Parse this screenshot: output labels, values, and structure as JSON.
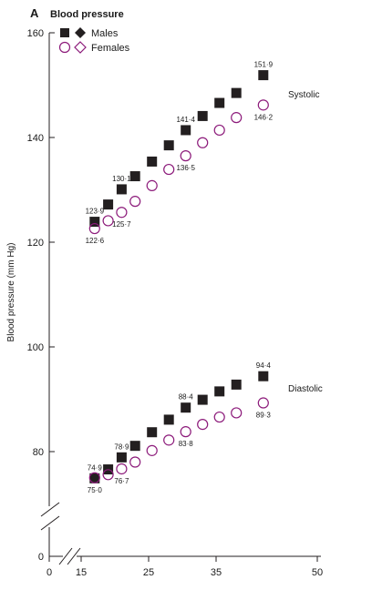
{
  "chart_data": {
    "type": "scatter",
    "panel_label": "A",
    "title": "Blood pressure",
    "ylabel": "Blood pressure (mm Hg)",
    "xlabel": "",
    "ylim": [
      0,
      160
    ],
    "xlim": [
      0,
      50
    ],
    "broken_axes": true,
    "y_ticks": [
      "0",
      "80",
      "100",
      "120",
      "140",
      "160"
    ],
    "x_ticks": [
      "0",
      "15",
      "25",
      "35",
      "50"
    ],
    "legend": {
      "position": "top-left",
      "entries": [
        {
          "name": "Males",
          "marker": "filled square / filled diamond"
        },
        {
          "name": "Females",
          "marker": "open circle / open diamond"
        }
      ]
    },
    "group_labels": {
      "systolic": "Systolic",
      "diastolic": "Diastolic"
    },
    "colors": {
      "males": "#231f20",
      "females": "#8c1a7a",
      "axis": "#231f20"
    },
    "series": [
      {
        "name": "Males",
        "group": "Systolic",
        "x": [
          17,
          19,
          21,
          23,
          25.5,
          28,
          30.5,
          33,
          35.5,
          38,
          42
        ],
        "y": [
          123.9,
          127.2,
          130.1,
          132.6,
          135.4,
          138.5,
          141.4,
          144.1,
          146.6,
          148.5,
          151.9
        ]
      },
      {
        "name": "Females",
        "group": "Systolic",
        "x": [
          17,
          19,
          21,
          23,
          25.5,
          28,
          30.5,
          33,
          35.5,
          38,
          42
        ],
        "y": [
          122.6,
          124.1,
          125.7,
          127.8,
          130.8,
          133.9,
          136.5,
          139.0,
          141.4,
          143.8,
          146.2
        ]
      },
      {
        "name": "Males",
        "group": "Diastolic",
        "x": [
          17,
          19,
          21,
          23,
          25.5,
          28,
          30.5,
          33,
          35.5,
          38,
          42
        ],
        "y": [
          74.9,
          76.6,
          78.9,
          81.1,
          83.7,
          86.1,
          88.4,
          89.9,
          91.5,
          92.8,
          94.4
        ]
      },
      {
        "name": "Females",
        "group": "Diastolic",
        "x": [
          17,
          19,
          21,
          23,
          25.5,
          28,
          30.5,
          33,
          35.5,
          38,
          42
        ],
        "y": [
          75.0,
          75.6,
          76.7,
          78.0,
          80.2,
          82.2,
          83.8,
          85.2,
          86.6,
          87.4,
          89.3
        ]
      }
    ],
    "annotations": [
      {
        "series": "Males",
        "group": "Systolic",
        "index": 0,
        "text": "123·9",
        "place": "above"
      },
      {
        "series": "Males",
        "group": "Systolic",
        "index": 2,
        "text": "130·1",
        "place": "above"
      },
      {
        "series": "Males",
        "group": "Systolic",
        "index": 6,
        "text": "141·4",
        "place": "above"
      },
      {
        "series": "Males",
        "group": "Systolic",
        "index": 10,
        "text": "151·9",
        "place": "above"
      },
      {
        "series": "Females",
        "group": "Systolic",
        "index": 0,
        "text": "122·6",
        "place": "below"
      },
      {
        "series": "Females",
        "group": "Systolic",
        "index": 2,
        "text": "125·7",
        "place": "below"
      },
      {
        "series": "Females",
        "group": "Systolic",
        "index": 6,
        "text": "136·5",
        "place": "below"
      },
      {
        "series": "Females",
        "group": "Systolic",
        "index": 10,
        "text": "146·2",
        "place": "below"
      },
      {
        "series": "Males",
        "group": "Diastolic",
        "index": 0,
        "text": "74·9",
        "place": "above"
      },
      {
        "series": "Males",
        "group": "Diastolic",
        "index": 2,
        "text": "78·9",
        "place": "above"
      },
      {
        "series": "Males",
        "group": "Diastolic",
        "index": 6,
        "text": "88·4",
        "place": "above"
      },
      {
        "series": "Males",
        "group": "Diastolic",
        "index": 10,
        "text": "94·4",
        "place": "above"
      },
      {
        "series": "Females",
        "group": "Diastolic",
        "index": 0,
        "text": "75·0",
        "place": "below"
      },
      {
        "series": "Females",
        "group": "Diastolic",
        "index": 2,
        "text": "76·7",
        "place": "below"
      },
      {
        "series": "Females",
        "group": "Diastolic",
        "index": 6,
        "text": "83·8",
        "place": "below"
      },
      {
        "series": "Females",
        "group": "Diastolic",
        "index": 10,
        "text": "89·3",
        "place": "below"
      }
    ]
  }
}
